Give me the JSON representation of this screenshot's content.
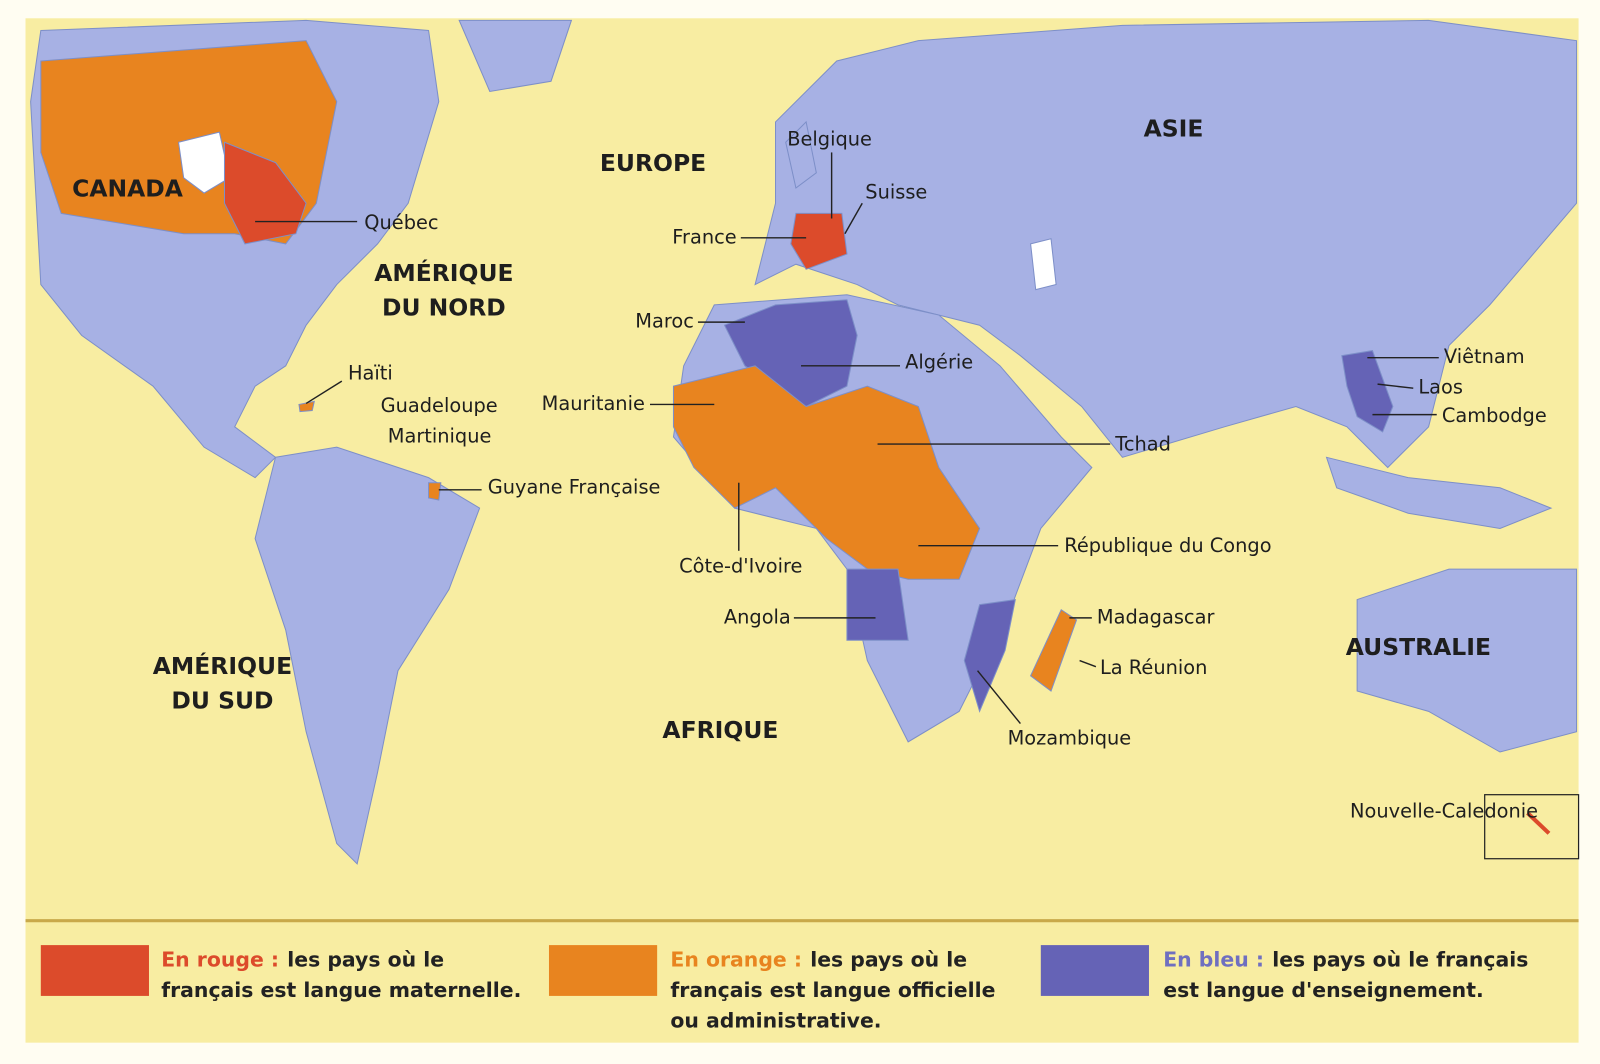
{
  "regions": [
    {
      "lines": [
        "CANADA"
      ]
    },
    {
      "lines": [
        "EUROPE"
      ]
    },
    {
      "lines": [
        "ASIE"
      ]
    },
    {
      "lines": [
        "AMÉRIQUE",
        "DU NORD"
      ]
    },
    {
      "lines": [
        "AMÉRIQUE",
        "DU SUD"
      ]
    },
    {
      "lines": [
        "AFRIQUE"
      ]
    },
    {
      "lines": [
        "AUSTRALIE"
      ]
    }
  ],
  "labels": [
    "Québec",
    "Belgique",
    "Suisse",
    "France",
    "Maroc",
    "Algérie",
    "Haïti",
    "Guadeloupe",
    "Martinique",
    "Guyane Française",
    "Mauritanie",
    "Tchad",
    "Côte-d'Ivoire",
    "République du Congo",
    "Angola",
    "Madagascar",
    "La Réunion",
    "Mozambique",
    "Viêtnam",
    "Laos",
    "Cambodge",
    "Nouvelle-Caledonie"
  ],
  "legend": [
    {
      "key": "En rouge :",
      "lines": [
        "les pays où le",
        "français est langue maternelle."
      ]
    },
    {
      "key": "En orange :",
      "lines": [
        "les pays où le",
        "français est langue officielle",
        "ou administrative."
      ]
    },
    {
      "key": "En bleu :",
      "lines": [
        "les pays où le français",
        "est langue d'enseignement."
      ]
    }
  ]
}
